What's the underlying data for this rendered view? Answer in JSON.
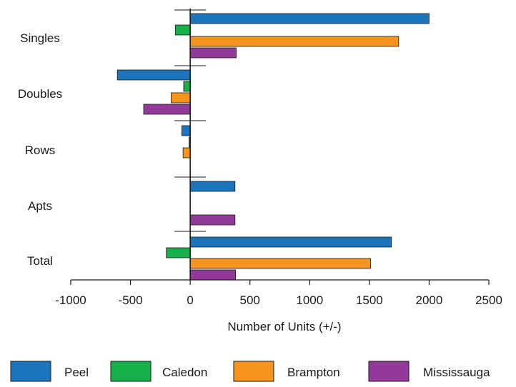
{
  "chart_data": {
    "type": "bar",
    "orientation": "horizontal",
    "categories": [
      "Singles",
      "Doubles",
      "Rows",
      "Apts",
      "Total"
    ],
    "series": [
      {
        "name": "Peel",
        "color": "#1b75bc",
        "values": [
          2000,
          -610,
          -70,
          375,
          1685
        ]
      },
      {
        "name": "Caledon",
        "color": "#15b04a",
        "values": [
          -125,
          -55,
          -10,
          0,
          -200
        ]
      },
      {
        "name": "Brampton",
        "color": "#f7941d",
        "values": [
          1745,
          -160,
          -60,
          0,
          1510
        ]
      },
      {
        "name": "Mississauga",
        "color": "#92399a",
        "values": [
          385,
          -390,
          0,
          375,
          380
        ]
      }
    ],
    "title": "",
    "xlabel": "Number of Units (+/-)",
    "ylabel": "",
    "xlim": [
      -1000,
      2500
    ],
    "xticks": [
      -1000,
      -500,
      0,
      500,
      1000,
      1500,
      2000,
      2500
    ],
    "grid": false,
    "legend_position": "bottom"
  }
}
